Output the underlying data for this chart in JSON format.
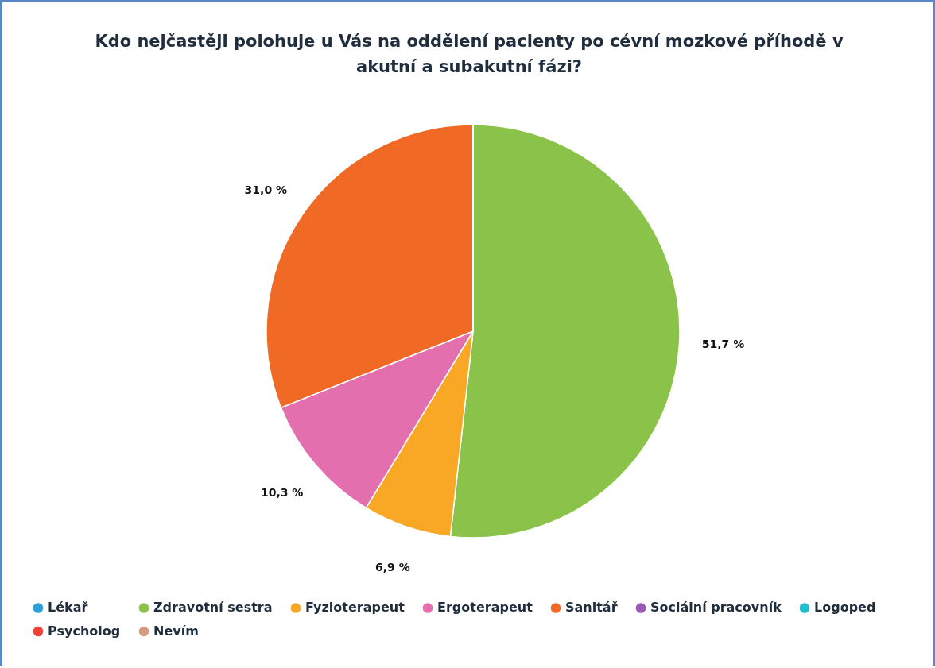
{
  "chart_data": {
    "type": "pie",
    "title": "Kdo nejčastěji polohuje u Vás na oddělení pacienty po cévní mozkové příhodě v akutní a subakutní fázi?",
    "categories": [
      "Lékař",
      "Zdravotní sestra",
      "Fyzioterapeut",
      "Ergoterapeut",
      "Sanitář",
      "Sociální pracovník",
      "Logoped",
      "Psycholog",
      "Nevím"
    ],
    "values": [
      0,
      51.7,
      6.9,
      10.3,
      31.0,
      0,
      0,
      0,
      0
    ],
    "value_labels": [
      null,
      "51,7 %",
      "6,9 %",
      "10,3 %",
      "31,0 %",
      null,
      null,
      null,
      null
    ],
    "colors": [
      "#2a9fd8",
      "#8bc34a",
      "#f9a825",
      "#e46fae",
      "#f06a25",
      "#9b59b6",
      "#1fbfcf",
      "#ef4136",
      "#d89a7e"
    ],
    "legend": "bottom"
  }
}
